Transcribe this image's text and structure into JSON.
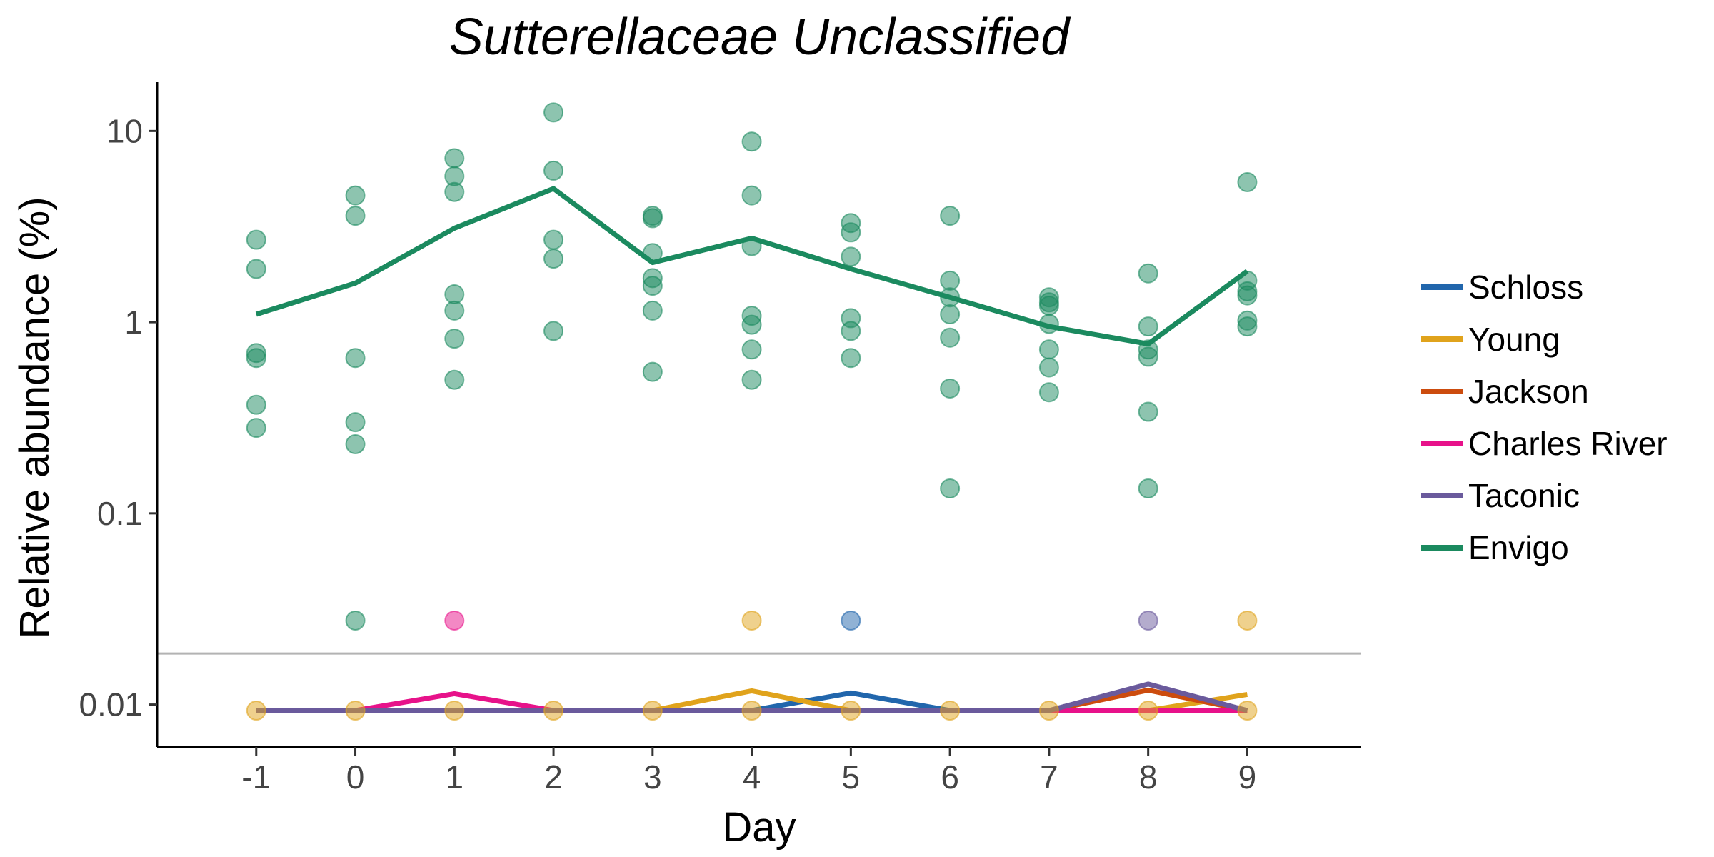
{
  "chart_data": {
    "type": "line",
    "title": "Sutterellaceae Unclassified",
    "xlabel": "Day",
    "ylabel": "Relative abundance (%)",
    "x": [
      -1,
      0,
      1,
      2,
      3,
      4,
      5,
      6,
      7,
      8,
      9
    ],
    "y_scale": "log10",
    "ylim": [
      0.006,
      18
    ],
    "y_ticks": [
      {
        "value": 0.01,
        "label": "0.01"
      },
      {
        "value": 0.1,
        "label": "0.1"
      },
      {
        "value": 1,
        "label": "1"
      },
      {
        "value": 10,
        "label": "10"
      }
    ],
    "detection_limit": 0.0185,
    "detection_limit_color": "#b3b3b3",
    "grid": false,
    "legend_position": "right",
    "series": [
      {
        "name": "Schloss",
        "color": "#2166ac",
        "line": [
          0.0093,
          0.0093,
          0.0093,
          0.0093,
          0.0093,
          0.0093,
          0.0115,
          0.0093,
          0.0093,
          0.0093,
          0.0093
        ],
        "points": [
          [
            5,
            0.0275
          ]
        ]
      },
      {
        "name": "Young",
        "color": "#e0a31c",
        "line": [
          0.0093,
          0.0093,
          0.0093,
          0.0093,
          0.0093,
          0.0118,
          0.0093,
          0.0093,
          0.0093,
          0.0093,
          0.0113
        ],
        "points": [
          [
            -1,
            0.0093
          ],
          [
            0,
            0.0093
          ],
          [
            1,
            0.0093
          ],
          [
            2,
            0.0093
          ],
          [
            3,
            0.0093
          ],
          [
            4,
            0.0093
          ],
          [
            5,
            0.0093
          ],
          [
            6,
            0.0093
          ],
          [
            7,
            0.0093
          ],
          [
            8,
            0.0093
          ],
          [
            9,
            0.0093
          ],
          [
            4,
            0.0275
          ],
          [
            9,
            0.0275
          ]
        ]
      },
      {
        "name": "Jackson",
        "color": "#cc4c0e",
        "line": [
          0.0093,
          0.0093,
          0.0093,
          0.0093,
          0.0093,
          0.0093,
          0.0093,
          0.0093,
          0.0093,
          0.0119,
          0.0093
        ],
        "points": []
      },
      {
        "name": "Charles River",
        "color": "#e7128a",
        "line": [
          0.0093,
          0.0093,
          0.0114,
          0.0093,
          0.0093,
          0.0093,
          0.0093,
          0.0093,
          0.0093,
          0.0093,
          0.0093
        ],
        "points": [
          [
            1,
            0.0275
          ]
        ]
      },
      {
        "name": "Taconic",
        "color": "#6a5a9c",
        "line": [
          0.0093,
          0.0093,
          0.0093,
          0.0093,
          0.0093,
          0.0093,
          0.0093,
          0.0093,
          0.0093,
          0.0128,
          0.0093
        ],
        "points": [
          [
            8,
            0.0275
          ]
        ]
      },
      {
        "name": "Envigo",
        "color": "#1b8a5f",
        "line": [
          1.1,
          1.6,
          3.1,
          5.0,
          2.05,
          2.75,
          1.9,
          1.35,
          0.95,
          0.77,
          1.85
        ],
        "points": [
          [
            -1,
            2.7
          ],
          [
            -1,
            1.9
          ],
          [
            -1,
            0.69
          ],
          [
            -1,
            0.65
          ],
          [
            -1,
            0.37
          ],
          [
            -1,
            0.28
          ],
          [
            0,
            4.6
          ],
          [
            0,
            3.6
          ],
          [
            0,
            0.65
          ],
          [
            0,
            0.3
          ],
          [
            0,
            0.23
          ],
          [
            0,
            0.0275
          ],
          [
            1,
            7.2
          ],
          [
            1,
            5.8
          ],
          [
            1,
            4.8
          ],
          [
            1,
            1.4
          ],
          [
            1,
            1.15
          ],
          [
            1,
            0.82
          ],
          [
            1,
            0.5
          ],
          [
            2,
            12.5
          ],
          [
            2,
            6.2
          ],
          [
            2,
            2.7
          ],
          [
            2,
            2.15
          ],
          [
            2,
            0.9
          ],
          [
            3,
            3.6
          ],
          [
            3,
            3.5
          ],
          [
            3,
            2.3
          ],
          [
            3,
            1.7
          ],
          [
            3,
            1.55
          ],
          [
            3,
            1.15
          ],
          [
            3,
            0.55
          ],
          [
            4,
            8.8
          ],
          [
            4,
            4.6
          ],
          [
            4,
            2.5
          ],
          [
            4,
            1.08
          ],
          [
            4,
            0.97
          ],
          [
            4,
            0.72
          ],
          [
            4,
            0.5
          ],
          [
            5,
            3.3
          ],
          [
            5,
            2.95
          ],
          [
            5,
            2.2
          ],
          [
            5,
            1.05
          ],
          [
            5,
            0.9
          ],
          [
            5,
            0.65
          ],
          [
            6,
            3.6
          ],
          [
            6,
            1.65
          ],
          [
            6,
            1.35
          ],
          [
            6,
            1.1
          ],
          [
            6,
            0.83
          ],
          [
            6,
            0.45
          ],
          [
            6,
            0.135
          ],
          [
            7,
            1.35
          ],
          [
            7,
            1.27
          ],
          [
            7,
            1.22
          ],
          [
            7,
            0.98
          ],
          [
            7,
            0.72
          ],
          [
            7,
            0.58
          ],
          [
            7,
            0.43
          ],
          [
            8,
            1.8
          ],
          [
            8,
            0.95
          ],
          [
            8,
            0.72
          ],
          [
            8,
            0.66
          ],
          [
            8,
            0.34
          ],
          [
            8,
            0.135
          ],
          [
            9,
            5.4
          ],
          [
            9,
            1.65
          ],
          [
            9,
            1.45
          ],
          [
            9,
            1.38
          ],
          [
            9,
            1.02
          ],
          [
            9,
            0.95
          ]
        ]
      }
    ]
  }
}
